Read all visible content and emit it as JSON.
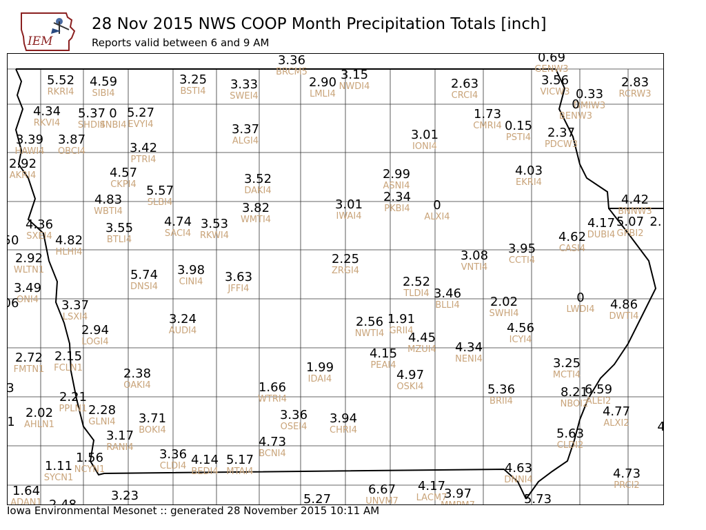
{
  "header": {
    "logo_text": "IEM",
    "title": "28 Nov 2015 NWS COOP Month Precipitation Totals [inch]",
    "subtitle": "Reports valid between 6 and 9 AM"
  },
  "footer": {
    "text": "Iowa Environmental Mesonet :: generated 28 November 2015 10:11 AM"
  },
  "colors": {
    "value": "#000000",
    "station_id": "#c9a47a",
    "county_line": "#333333",
    "state_line": "#000000"
  },
  "stations": [
    {
      "val": "5.52",
      "id": "RKRI4"
    },
    {
      "val": "4.59",
      "id": "SIBI4"
    },
    {
      "val": "3.25",
      "id": "BSTI4"
    },
    {
      "val": "3.33",
      "id": "SWEI4"
    },
    {
      "val": "3.36",
      "id": "BRCM5"
    },
    {
      "val": "2.90",
      "id": "LMLI4"
    },
    {
      "val": "3.15",
      "id": "NWDI4"
    },
    {
      "val": "2.63",
      "id": "CRCI4"
    },
    {
      "val": "0.69",
      "id": "GENW3"
    },
    {
      "val": "3.56",
      "id": "VICW3"
    },
    {
      "val": "0.33",
      "id": "DMIW3"
    },
    {
      "val": "0",
      "id": "BENW3"
    },
    {
      "val": "2.83",
      "id": "RCRW3"
    },
    {
      "val": "4.34",
      "id": "RKVI4"
    },
    {
      "val": "5.37",
      "id": "SHDI4"
    },
    {
      "val": "0",
      "id": "SNBI4"
    },
    {
      "val": "5.27",
      "id": "EVYI4"
    },
    {
      "val": "1.73",
      "id": "CMRI4"
    },
    {
      "val": "0.15",
      "id": "PSTI4"
    },
    {
      "val": "2.37",
      "id": "PDCW3"
    },
    {
      "val": "3.39",
      "id": "HAWI4"
    },
    {
      "val": "3.87",
      "id": "OBCI4"
    },
    {
      "val": "3.37",
      "id": "ALGI4"
    },
    {
      "val": "3.01",
      "id": "IONI4"
    },
    {
      "val": "3.42",
      "id": "PTRI4"
    },
    {
      "val": "2.92",
      "id": "AKRI4"
    },
    {
      "val": "4.57",
      "id": "CKPI4"
    },
    {
      "val": "2.99",
      "id": "ASNI4"
    },
    {
      "val": "4.03",
      "id": "EKRI4"
    },
    {
      "val": "3.52",
      "id": "DAKI4"
    },
    {
      "val": "5.57",
      "id": "SLBI4"
    },
    {
      "val": "2.34",
      "id": "PKBI4"
    },
    {
      "val": "0",
      "id": "ALXI4"
    },
    {
      "val": "4.83",
      "id": "WBTI4"
    },
    {
      "val": "3.82",
      "id": "WMTI4"
    },
    {
      "val": "3.01",
      "id": "IWAI4"
    },
    {
      "val": "4.42",
      "id": "BNNW3"
    },
    {
      "val": "4.17",
      "id": "DUBI4"
    },
    {
      "val": "5.07",
      "id": "GPBI2"
    },
    {
      "val": "2.",
      "id": ""
    },
    {
      "val": "4.36",
      "id": "SXEI4"
    },
    {
      "val": "3.55",
      "id": "BTLI4"
    },
    {
      "val": "4.74",
      "id": "SACI4"
    },
    {
      "val": "3.53",
      "id": "RKWI4"
    },
    {
      "val": "4.62",
      "id": "CASI4"
    },
    {
      "val": "50",
      "id": ""
    },
    {
      "val": "4.82",
      "id": "HLHI4"
    },
    {
      "val": "3.08",
      "id": "VNTI4"
    },
    {
      "val": "3.95",
      "id": "CCTI4"
    },
    {
      "val": "2.92",
      "id": "WLTN1"
    },
    {
      "val": "5.74",
      "id": "DNSI4"
    },
    {
      "val": "3.98",
      "id": "CINI4"
    },
    {
      "val": "3.63",
      "id": "JFFI4"
    },
    {
      "val": "2.25",
      "id": "ZRGI4"
    },
    {
      "val": "2.52",
      "id": "TLDI4"
    },
    {
      "val": "3.49",
      "id": "ONI4"
    },
    {
      "val": "3.46",
      "id": "BLLI4"
    },
    {
      "val": "06",
      "id": ""
    },
    {
      "val": "3.37",
      "id": "LSXI4"
    },
    {
      "val": "2.02",
      "id": "SWHI4"
    },
    {
      "val": "0",
      "id": "LWDI4"
    },
    {
      "val": "4.86",
      "id": "DWTI4"
    },
    {
      "val": "3.24",
      "id": "AUDI4"
    },
    {
      "val": "2.56",
      "id": "NWTI4"
    },
    {
      "val": "1.91",
      "id": "GRII4"
    },
    {
      "val": "4.56",
      "id": "ICYI4"
    },
    {
      "val": "2.94",
      "id": "LOGI4"
    },
    {
      "val": "4.45",
      "id": "MZUI4"
    },
    {
      "val": "4.34",
      "id": "NENI4"
    },
    {
      "val": "2.72",
      "id": "FMTN1"
    },
    {
      "val": "2.15",
      "id": "FCLN1"
    },
    {
      "val": "4.15",
      "id": "PEAI4"
    },
    {
      "val": "3.25",
      "id": "MCTI4"
    },
    {
      "val": "2.38",
      "id": "OAKI4"
    },
    {
      "val": "1.66",
      "id": "WTRI4"
    },
    {
      "val": "1.99",
      "id": "IDAI4"
    },
    {
      "val": "4.97",
      "id": "OSKI4"
    },
    {
      "val": "3",
      "id": ""
    },
    {
      "val": "5.36",
      "id": "BRII4"
    },
    {
      "val": "6.59",
      "id": "ALEI2"
    },
    {
      "val": "8.21",
      "id": "NBOI2"
    },
    {
      "val": "2.21",
      "id": "PPLN1"
    },
    {
      "val": "2.02",
      "id": "AHLN1"
    },
    {
      "val": "2.28",
      "id": "GLNI4"
    },
    {
      "val": "4.77",
      "id": "ALXI2"
    },
    {
      "val": "1",
      "id": ""
    },
    {
      "val": "3.71",
      "id": "BOKI4"
    },
    {
      "val": "3.36",
      "id": "OSEI4"
    },
    {
      "val": "3.94",
      "id": "CHRI4"
    },
    {
      "val": "4.",
      "id": ""
    },
    {
      "val": "3.17",
      "id": "RANI4"
    },
    {
      "val": "5.63",
      "id": "CLDI2"
    },
    {
      "val": "4.73",
      "id": "BCNI4"
    },
    {
      "val": "3.36",
      "id": "CLDI4"
    },
    {
      "val": "4.14",
      "id": "BEDI4"
    },
    {
      "val": "5.17",
      "id": "MTAI4"
    },
    {
      "val": "1.11",
      "id": "SYCN1"
    },
    {
      "val": "1.56",
      "id": "NCYN1"
    },
    {
      "val": "4.73",
      "id": "PRCI2"
    },
    {
      "val": "4.63",
      "id": "DNNI4"
    },
    {
      "val": "1.64",
      "id": "ADAN1"
    },
    {
      "val": "2.48",
      "id": ""
    },
    {
      "val": "3.23",
      "id": ""
    },
    {
      "val": "5.27",
      "id": ""
    },
    {
      "val": "6.67",
      "id": "UNVM7"
    },
    {
      "val": "4.17",
      "id": "LACM7"
    },
    {
      "val": "3.97",
      "id": "MMPM7"
    },
    {
      "val": "5.73",
      "id": ""
    }
  ]
}
